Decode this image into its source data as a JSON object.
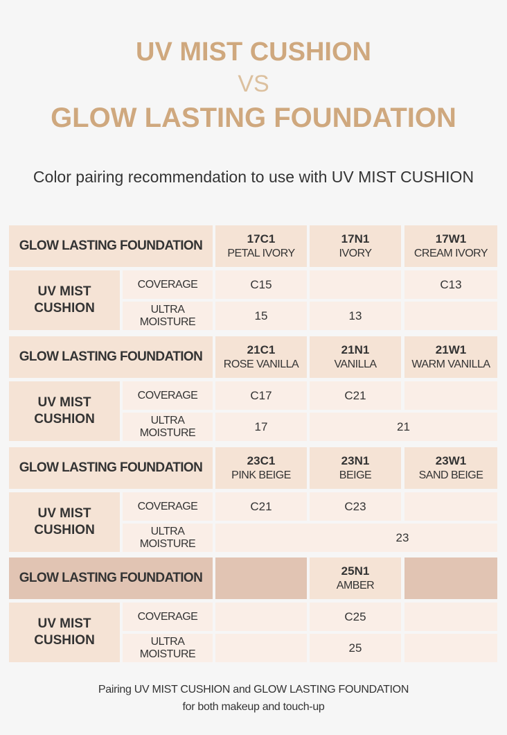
{
  "title": {
    "line1": "UV MIST CUSHION",
    "vs": "VS",
    "line2": "GLOW LASTING FOUNDATION"
  },
  "subtitle": "Color pairing recommendation to use with UV MIST CUSHION",
  "labels": {
    "foundation": "GLOW LASTING FOUNDATION",
    "cushion": "UV MIST CUSHION",
    "cushion_line1": "UV MIST",
    "cushion_line2": "CUSHION",
    "coverage": "COVERAGE",
    "ultra_moisture": "ULTRA MOISTURE"
  },
  "groups": [
    {
      "shades": [
        {
          "code": "17C1",
          "name": "PETAL IVORY"
        },
        {
          "code": "17N1",
          "name": "IVORY"
        },
        {
          "code": "17W1",
          "name": "CREAM IVORY"
        }
      ],
      "coverage": [
        "C15",
        "",
        "C13"
      ],
      "ultra_moisture": [
        "15",
        "13",
        ""
      ]
    },
    {
      "shades": [
        {
          "code": "21C1",
          "name": "ROSE VANILLA"
        },
        {
          "code": "21N1",
          "name": "VANILLA"
        },
        {
          "code": "21W1",
          "name": "WARM VANILLA"
        }
      ],
      "coverage": [
        "C17",
        "C21",
        ""
      ],
      "ultra_moisture": [
        "17",
        "21"
      ]
    },
    {
      "shades": [
        {
          "code": "23C1",
          "name": "PINK BEIGE"
        },
        {
          "code": "23N1",
          "name": "BEIGE"
        },
        {
          "code": "23W1",
          "name": "SAND BEIGE"
        }
      ],
      "coverage": [
        "C21",
        "C23",
        ""
      ],
      "ultra_moisture": [
        "",
        "23"
      ]
    },
    {
      "shades": [
        {
          "code": "",
          "name": ""
        },
        {
          "code": "25N1",
          "name": "AMBER"
        },
        {
          "code": "",
          "name": ""
        }
      ],
      "coverage": [
        "",
        "C25",
        ""
      ],
      "ultra_moisture": [
        "",
        "25",
        ""
      ]
    }
  ],
  "footer": {
    "line1": "Pairing UV MIST CUSHION and GLOW LASTING FOUNDATION",
    "line2": "for both makeup and touch-up"
  },
  "colors": {
    "title": "#cfa87e",
    "header_bg": "#f5e3d5",
    "header_dark_bg": "#e1c4b3",
    "body_bg": "#faeee7",
    "page_bg": "#f6f6f6"
  }
}
